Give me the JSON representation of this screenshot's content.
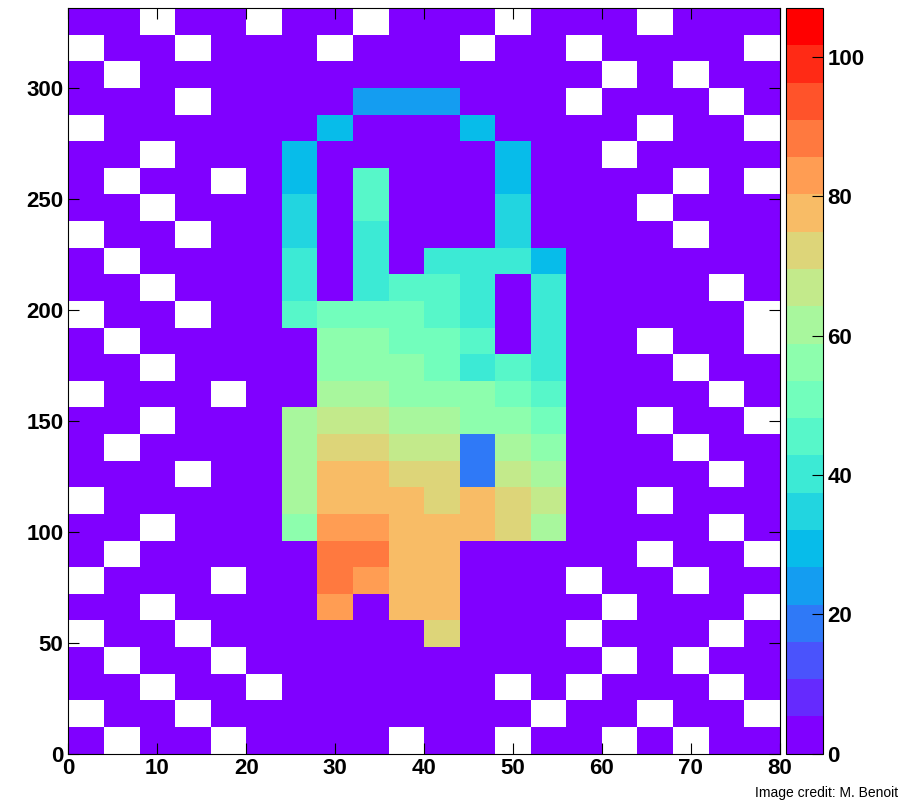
{
  "chart_data": {
    "type": "heatmap",
    "credit": "Image credit: M. Benoit",
    "x_edges": [
      0,
      4,
      8,
      12,
      16,
      20,
      24,
      28,
      32,
      36,
      40,
      44,
      48,
      52,
      56,
      60,
      64,
      68,
      72,
      76,
      80
    ],
    "y_edges": [
      0,
      12,
      24,
      36,
      48,
      60,
      72,
      84,
      96,
      108,
      120,
      132,
      144,
      156,
      168,
      180,
      192,
      204,
      216,
      228,
      240,
      252,
      264,
      276,
      288,
      300,
      312,
      324,
      336
    ],
    "cells": [
      [
        1,
        0,
        1,
        1,
        0,
        1,
        4,
        4,
        1,
        0,
        4,
        1,
        0,
        1,
        1,
        0,
        1,
        0,
        1,
        1
      ],
      [
        0,
        1,
        1,
        0,
        1,
        1,
        4,
        4,
        1,
        1,
        4,
        1,
        1,
        0,
        1,
        1,
        0,
        1,
        1,
        0
      ],
      [
        1,
        1,
        0,
        1,
        1,
        0,
        4,
        4,
        1,
        1,
        4,
        1,
        0,
        1,
        0,
        1,
        1,
        1,
        0,
        1
      ],
      [
        1,
        0,
        1,
        1,
        0,
        1,
        4,
        4,
        2,
        2,
        4,
        2,
        1,
        1,
        1,
        0,
        1,
        0,
        1,
        1
      ],
      [
        0,
        1,
        1,
        0,
        1,
        2,
        4,
        4,
        3,
        3,
        70,
        3,
        2,
        1,
        0,
        1,
        1,
        1,
        0,
        1
      ],
      [
        1,
        1,
        0,
        1,
        1,
        3,
        4,
        85,
        5,
        80,
        75,
        4,
        2,
        1,
        1,
        0,
        1,
        1,
        1,
        0
      ],
      [
        0,
        1,
        1,
        1,
        0,
        3,
        4,
        90,
        85,
        80,
        78,
        4,
        2,
        1,
        0,
        1,
        1,
        0,
        1,
        1
      ],
      [
        1,
        0,
        1,
        1,
        1,
        3,
        4,
        88,
        90,
        78,
        80,
        4,
        3,
        2,
        1,
        1,
        0,
        1,
        1,
        0
      ],
      [
        1,
        1,
        0,
        1,
        1,
        3,
        55,
        85,
        82,
        75,
        78,
        75,
        72,
        60,
        4,
        1,
        1,
        1,
        0,
        1
      ],
      [
        0,
        1,
        1,
        1,
        1,
        3,
        60,
        80,
        80,
        75,
        72,
        75,
        70,
        65,
        4,
        1,
        0,
        1,
        1,
        1
      ],
      [
        1,
        1,
        1,
        0,
        1,
        3,
        60,
        75,
        75,
        72,
        70,
        20,
        65,
        60,
        3,
        1,
        1,
        1,
        0,
        1
      ],
      [
        1,
        0,
        1,
        1,
        1,
        3,
        62,
        70,
        70,
        68,
        65,
        20,
        60,
        55,
        3,
        1,
        1,
        0,
        1,
        1
      ],
      [
        1,
        1,
        0,
        1,
        1,
        3,
        60,
        65,
        65,
        62,
        60,
        58,
        55,
        50,
        3,
        1,
        0,
        1,
        1,
        0
      ],
      [
        0,
        1,
        1,
        1,
        0,
        2,
        5,
        60,
        60,
        58,
        55,
        55,
        52,
        45,
        3,
        1,
        1,
        1,
        0,
        1
      ],
      [
        1,
        1,
        0,
        1,
        1,
        2,
        4,
        55,
        55,
        55,
        50,
        40,
        45,
        42,
        3,
        1,
        1,
        0,
        1,
        1
      ],
      [
        1,
        0,
        1,
        1,
        1,
        2,
        4,
        55,
        55,
        52,
        50,
        45,
        5,
        40,
        3,
        1,
        0,
        1,
        1,
        0
      ],
      [
        0,
        1,
        1,
        0,
        1,
        2,
        45,
        50,
        52,
        50,
        48,
        40,
        5,
        38,
        4,
        1,
        1,
        1,
        1,
        0
      ],
      [
        1,
        1,
        0,
        1,
        1,
        2,
        40,
        5,
        40,
        45,
        45,
        40,
        5,
        38,
        3,
        4,
        4,
        1,
        0,
        1
      ],
      [
        1,
        0,
        1,
        1,
        1,
        2,
        38,
        5,
        40,
        5,
        38,
        40,
        40,
        30,
        3,
        1,
        1,
        4,
        4,
        4
      ],
      [
        0,
        1,
        1,
        0,
        1,
        3,
        35,
        5,
        40,
        5,
        5,
        5,
        35,
        3,
        2,
        1,
        1,
        0,
        1,
        1
      ],
      [
        1,
        1,
        0,
        1,
        1,
        3,
        35,
        5,
        45,
        5,
        5,
        5,
        35,
        3,
        1,
        1,
        0,
        1,
        1,
        1
      ],
      [
        1,
        0,
        1,
        1,
        0,
        3,
        30,
        5,
        45,
        5,
        5,
        5,
        30,
        3,
        1,
        1,
        1,
        0,
        1,
        0
      ],
      [
        1,
        1,
        0,
        4,
        4,
        4,
        30,
        5,
        5,
        5,
        5,
        5,
        30,
        2,
        1,
        0,
        1,
        1,
        1,
        1
      ],
      [
        0,
        4,
        4,
        1,
        1,
        3,
        4,
        28,
        5,
        5,
        5,
        28,
        3,
        1,
        1,
        1,
        0,
        1,
        1,
        0
      ],
      [
        4,
        1,
        1,
        0,
        1,
        2,
        3,
        4,
        25,
        25,
        25,
        4,
        2,
        1,
        0,
        1,
        1,
        1,
        0,
        1
      ],
      [
        1,
        0,
        1,
        1,
        1,
        1,
        2,
        2,
        3,
        3,
        2,
        2,
        1,
        1,
        1,
        0,
        1,
        0,
        1,
        1
      ],
      [
        0,
        1,
        1,
        0,
        1,
        1,
        1,
        0,
        1,
        1,
        1,
        0,
        1,
        1,
        0,
        1,
        1,
        1,
        1,
        0
      ],
      [
        1,
        1,
        0,
        1,
        1,
        0,
        1,
        1,
        0,
        1,
        1,
        1,
        0,
        1,
        1,
        1,
        0,
        1,
        1,
        1
      ]
    ],
    "xlim": [
      0,
      80
    ],
    "xticks": [
      0,
      10,
      20,
      30,
      40,
      50,
      60,
      70,
      80
    ],
    "ylim": [
      0,
      336
    ],
    "yticks": [
      0,
      50,
      100,
      150,
      200,
      250,
      300
    ],
    "colorbar_range": [
      0,
      107
    ],
    "colorbar_ticks": [
      0,
      20,
      40,
      60,
      80,
      100
    ]
  }
}
